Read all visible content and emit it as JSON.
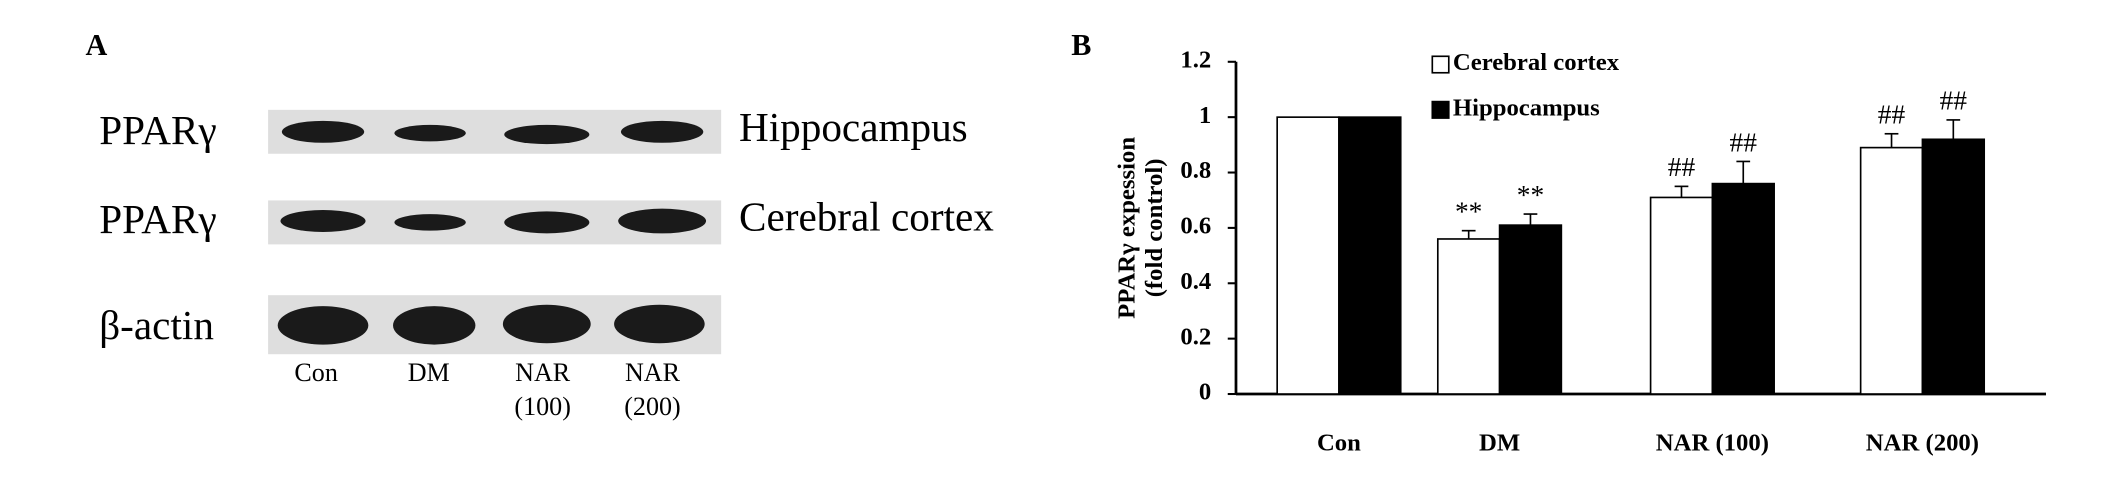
{
  "panel_a": {
    "label": "A",
    "rows": [
      {
        "label": "PPARγ",
        "tissue": "Hippocampus"
      },
      {
        "label": "PPARγ",
        "tissue": "Cerebral cortex"
      },
      {
        "label": "β-actin"
      }
    ],
    "lanes": [
      [
        "Con"
      ],
      [
        "DM"
      ],
      [
        "NAR",
        "(100)"
      ],
      [
        "NAR",
        "(200)"
      ]
    ]
  },
  "chart_data": {
    "type": "bar",
    "panel_label": "B",
    "y_label": [
      "PPARγ expession",
      "(fold control)"
    ],
    "categories": [
      "Con",
      "DM",
      "NAR (100)",
      "NAR (200)"
    ],
    "series": [
      {
        "name": "Cerebral cortex",
        "color": "#ffffff",
        "values": [
          1,
          0.56,
          0.71,
          0.89
        ],
        "errors": [
          0,
          0.03,
          0.04,
          0.05
        ],
        "annotations": [
          null,
          "**",
          "##",
          "##"
        ]
      },
      {
        "name": "Hippocampus",
        "color": "#000000",
        "values": [
          1,
          0.61,
          0.76,
          0.92
        ],
        "errors": [
          0,
          0.04,
          0.08,
          0.07
        ],
        "annotations": [
          null,
          "**",
          "##",
          "##"
        ]
      }
    ],
    "ylim": [
      0,
      1.2
    ],
    "yticks": [
      0,
      0.2,
      0.4,
      0.6,
      0.8,
      1,
      1.2
    ],
    "grid": false
  }
}
